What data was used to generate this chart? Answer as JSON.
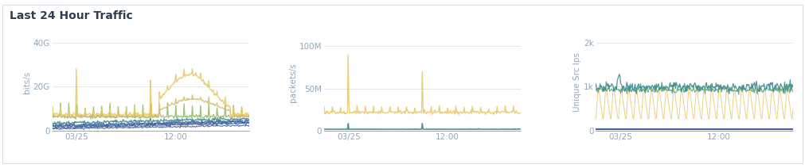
{
  "title": "Last 24 Hour Traffic",
  "title_fontsize": 10,
  "title_color": "#2c3e50",
  "background_color": "#ffffff",
  "border_color": "#d8dde6",
  "chart1": {
    "ylabel": "bits/s",
    "yticks": [
      0,
      20,
      40
    ],
    "ytick_labels": [
      "0",
      "20G",
      "40G"
    ],
    "ylim": [
      0,
      44
    ],
    "xtick_labels": [
      "03/25",
      "12:00"
    ],
    "colors": {
      "yellow": "#e8c96a",
      "yellow_light": "#d4ba6e",
      "green": "#8ab85a",
      "teal": "#3d8a8e",
      "blue": "#3a5d9e",
      "blue2": "#2a4d8e"
    }
  },
  "chart2": {
    "ylabel": "packets/s",
    "yticks": [
      0,
      50,
      100
    ],
    "ytick_labels": [
      "0",
      "50M",
      "100M"
    ],
    "ylim": [
      0,
      115
    ],
    "xtick_labels": [
      "03/25",
      "12:00"
    ],
    "colors": {
      "yellow": "#e8c96a",
      "teal": "#3d8a8e"
    }
  },
  "chart3": {
    "ylabel": "Unique Src Ips",
    "yticks": [
      0,
      1,
      2
    ],
    "ytick_labels": [
      "0",
      "1k",
      "2k"
    ],
    "ylim": [
      0,
      2.2
    ],
    "xtick_labels": [
      "03/25",
      "12:00"
    ],
    "colors": {
      "yellow": "#e8c96a",
      "teal": "#3d8a8e",
      "green": "#5a9e7a",
      "blue": "#3a5d9e"
    }
  },
  "tick_color": "#8fa8bc",
  "tick_fontsize": 7.5,
  "axis_label_fontsize": 7.5,
  "grid_color": "#dde3ea",
  "line_width": 1.0
}
